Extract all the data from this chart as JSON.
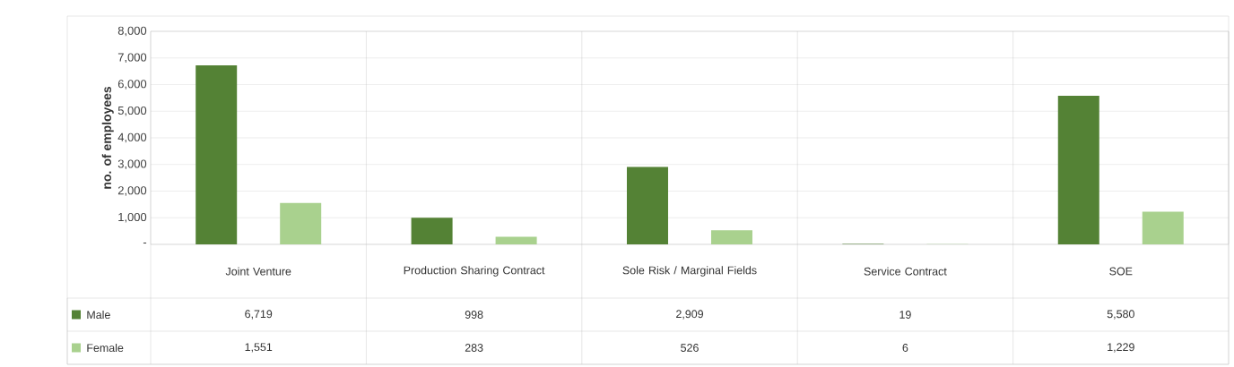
{
  "chart_data": {
    "type": "bar",
    "ylabel": "no. of employees",
    "categories": [
      "Joint Venture",
      "Production Sharing Contract",
      "Sole Risk / Marginal Fields",
      "Service Contract",
      "SOE"
    ],
    "series": [
      {
        "name": "Male",
        "color": "#548235",
        "values": [
          6719,
          998,
          2909,
          19,
          5580
        ],
        "value_labels": [
          "6,719",
          "998",
          "2,909",
          "19",
          "5,580"
        ]
      },
      {
        "name": "Female",
        "color": "#a9d18e",
        "values": [
          1551,
          283,
          526,
          6,
          1229
        ],
        "value_labels": [
          "1,551",
          "283",
          "526",
          "6",
          "1,229"
        ]
      }
    ],
    "ylim": [
      0,
      8000
    ],
    "yticks": [
      {
        "value": 0,
        "label": "-"
      },
      {
        "value": 1000,
        "label": "1,000"
      },
      {
        "value": 2000,
        "label": "2,000"
      },
      {
        "value": 3000,
        "label": "3,000"
      },
      {
        "value": 4000,
        "label": "4,000"
      },
      {
        "value": 5000,
        "label": "5,000"
      },
      {
        "value": 6000,
        "label": "6,000"
      },
      {
        "value": 7000,
        "label": "7,000"
      },
      {
        "value": 8000,
        "label": "8,000"
      }
    ],
    "grid": "y",
    "legend": "bottom"
  }
}
